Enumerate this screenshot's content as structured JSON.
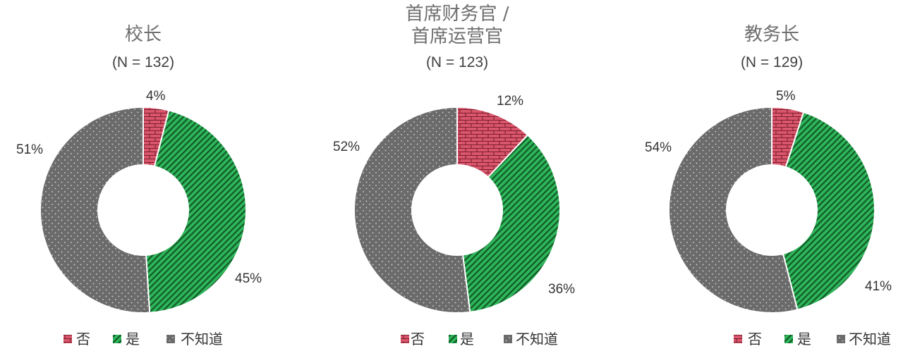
{
  "legend": [
    {
      "key": "no",
      "label": "否",
      "color": "#d9566c"
    },
    {
      "key": "yes",
      "label": "是",
      "color": "#2fb55a"
    },
    {
      "key": "unknown",
      "label": "不知道",
      "color": "#6b6b6b"
    }
  ],
  "chart_data": [
    {
      "type": "pie",
      "title": "校长",
      "subtitle": "(N = 132)",
      "categories": [
        "否",
        "是",
        "不知道"
      ],
      "values": [
        4,
        45,
        51
      ],
      "value_labels": [
        "4%",
        "45%",
        "51%"
      ]
    },
    {
      "type": "pie",
      "title": [
        "首席财务官 /",
        "首席运营官"
      ],
      "subtitle": "(N = 123)",
      "categories": [
        "否",
        "是",
        "不知道"
      ],
      "values": [
        12,
        36,
        52
      ],
      "value_labels": [
        "12%",
        "36%",
        "52%"
      ]
    },
    {
      "type": "pie",
      "title": "教务长",
      "subtitle": "(N = 129)",
      "categories": [
        "否",
        "是",
        "不知道"
      ],
      "values": [
        5,
        41,
        54
      ],
      "value_labels": [
        "5%",
        "41%",
        "54%"
      ]
    }
  ]
}
